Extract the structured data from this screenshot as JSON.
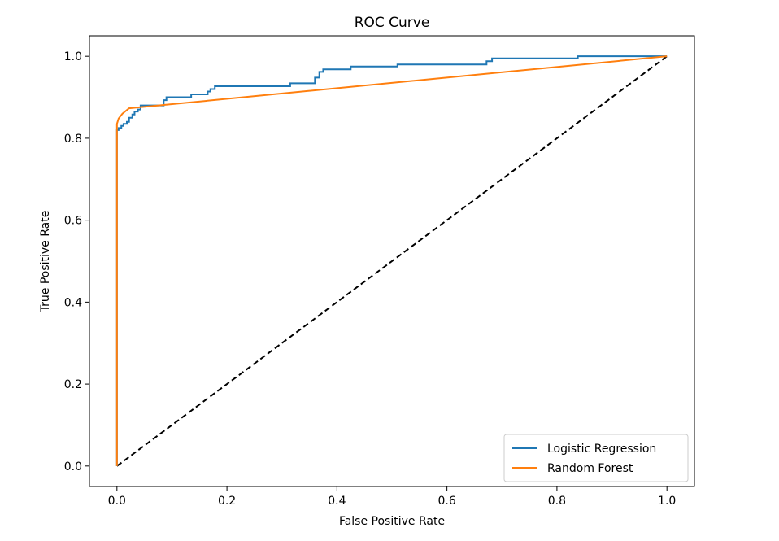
{
  "chart_data": {
    "type": "line",
    "title": "ROC Curve",
    "xlabel": "False Positive Rate",
    "ylabel": "True Positive Rate",
    "xlim": [
      -0.05,
      1.05
    ],
    "ylim": [
      -0.05,
      1.05
    ],
    "xticks": [
      0.0,
      0.2,
      0.4,
      0.6,
      0.8,
      1.0
    ],
    "yticks": [
      0.0,
      0.2,
      0.4,
      0.6,
      0.8,
      1.0
    ],
    "xtick_labels": [
      "0.0",
      "0.2",
      "0.4",
      "0.6",
      "0.8",
      "1.0"
    ],
    "ytick_labels": [
      "0.0",
      "0.2",
      "0.4",
      "0.6",
      "0.8",
      "1.0"
    ],
    "grid": false,
    "legend_position": "lower-right",
    "series": [
      {
        "name": "Logistic Regression",
        "color": "#1f77b4",
        "style": "solid",
        "x": [
          0.0,
          0.0,
          0.003,
          0.003,
          0.008,
          0.008,
          0.012,
          0.012,
          0.018,
          0.018,
          0.022,
          0.022,
          0.028,
          0.028,
          0.032,
          0.032,
          0.038,
          0.038,
          0.043,
          0.043,
          0.085,
          0.085,
          0.09,
          0.09,
          0.135,
          0.135,
          0.165,
          0.165,
          0.17,
          0.17,
          0.178,
          0.178,
          0.315,
          0.315,
          0.36,
          0.36,
          0.368,
          0.368,
          0.375,
          0.375,
          0.425,
          0.425,
          0.51,
          0.51,
          0.672,
          0.672,
          0.682,
          0.682,
          0.838,
          0.838,
          1.0
        ],
        "y": [
          0.0,
          0.82,
          0.82,
          0.825,
          0.825,
          0.83,
          0.83,
          0.835,
          0.835,
          0.84,
          0.84,
          0.85,
          0.85,
          0.858,
          0.858,
          0.865,
          0.865,
          0.87,
          0.87,
          0.88,
          0.88,
          0.893,
          0.893,
          0.9,
          0.9,
          0.907,
          0.907,
          0.914,
          0.914,
          0.92,
          0.92,
          0.927,
          0.927,
          0.934,
          0.934,
          0.948,
          0.948,
          0.962,
          0.962,
          0.968,
          0.968,
          0.975,
          0.975,
          0.98,
          0.98,
          0.988,
          0.988,
          0.995,
          0.995,
          1.0,
          1.0
        ]
      },
      {
        "name": "Random Forest",
        "color": "#ff7f0e",
        "style": "solid",
        "x": [
          0.0,
          0.0,
          0.003,
          0.01,
          0.022,
          1.0
        ],
        "y": [
          0.0,
          0.835,
          0.848,
          0.86,
          0.873,
          1.0
        ]
      },
      {
        "color": "#000000",
        "style": "dashed",
        "x": [
          0.0,
          1.0
        ],
        "y": [
          0.0,
          1.0
        ]
      }
    ]
  }
}
